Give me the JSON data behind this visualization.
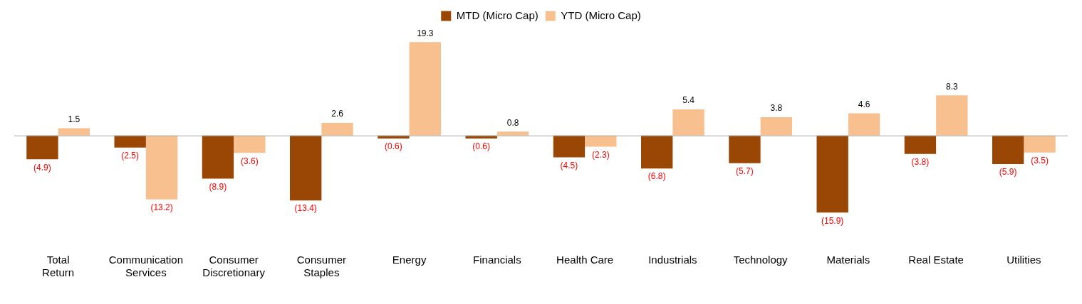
{
  "chart_data": {
    "type": "bar",
    "categories": [
      "Total Return",
      "Communication Services",
      "Consumer Discretionary",
      "Consumer Staples",
      "Energy",
      "Financials",
      "Health Care",
      "Industrials",
      "Technology",
      "Materials",
      "Real Estate",
      "Utilities"
    ],
    "series": [
      {
        "name": "MTD (Micro Cap)",
        "color": "#9a4705",
        "values": [
          -4.9,
          -2.5,
          -8.9,
          -13.4,
          -0.6,
          -0.6,
          -4.5,
          -6.8,
          -5.7,
          -15.9,
          -3.8,
          -5.9
        ],
        "value_labels": [
          "(4.9)",
          "(2.5)",
          "(8.9)",
          "(13.4)",
          "(0.6)",
          "(0.6)",
          "(4.5)",
          "(6.8)",
          "(5.7)",
          "(15.9)",
          "(3.8)",
          "(5.9)"
        ]
      },
      {
        "name": "YTD (Micro Cap)",
        "color": "#f9c08f",
        "values": [
          1.5,
          -13.2,
          -3.6,
          2.6,
          19.3,
          0.8,
          -2.3,
          5.4,
          3.8,
          4.6,
          8.3,
          -3.5
        ],
        "value_labels": [
          "1.5",
          "(13.2)",
          "(3.6)",
          "2.6",
          "19.3",
          "0.8",
          "(2.3)",
          "5.4",
          "3.8",
          "4.6",
          "8.3",
          "(3.5)"
        ]
      }
    ],
    "legend": "top",
    "grid": false
  }
}
